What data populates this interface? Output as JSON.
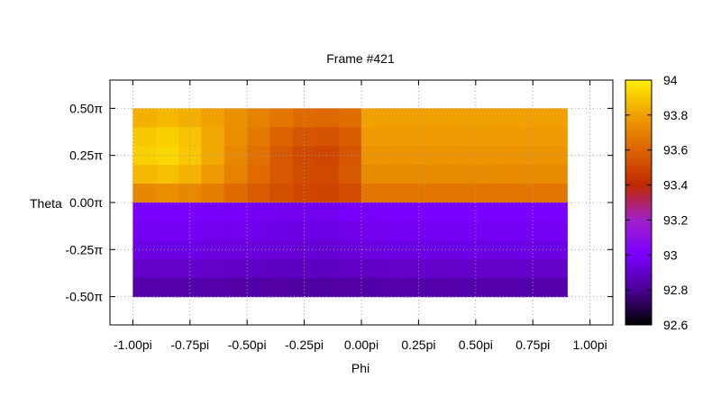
{
  "chart_data": {
    "type": "heatmap",
    "title": "Frame #421",
    "xlabel": "Phi",
    "ylabel": "Theta",
    "x_unit": "pi",
    "y_unit": "π",
    "xlim": [
      -1.1,
      1.1
    ],
    "ylim": [
      -0.65,
      0.65
    ],
    "x_ticks": [
      -1.0,
      -0.75,
      -0.5,
      -0.25,
      0.0,
      0.25,
      0.5,
      0.75,
      1.0
    ],
    "x_tick_labels": [
      "-1.00pi",
      "-0.75pi",
      "-0.50pi",
      "-0.25pi",
      "0.00pi",
      "0.25pi",
      "0.50pi",
      "0.75pi",
      "1.00pi"
    ],
    "y_ticks": [
      0.5,
      0.25,
      0.0,
      -0.25,
      -0.5
    ],
    "y_tick_labels": [
      "0.50π",
      "0.25π",
      "0.00π",
      "-0.25π",
      "-0.50π"
    ],
    "grid": true,
    "data_extent": {
      "x": [
        -1.0,
        0.9
      ],
      "y": [
        -0.5,
        0.5
      ]
    },
    "grid_phi": [
      -0.95,
      -0.85,
      -0.75,
      -0.65,
      -0.55,
      -0.45,
      -0.35,
      -0.25,
      -0.15,
      -0.05,
      0.05,
      0.15,
      0.25,
      0.35,
      0.45,
      0.55,
      0.65,
      0.75,
      0.85
    ],
    "grid_theta": [
      0.45,
      0.35,
      0.25,
      0.15,
      0.05,
      -0.05,
      -0.15,
      -0.25,
      -0.35,
      -0.45
    ],
    "values": [
      [
        93.84,
        93.86,
        93.84,
        93.8,
        93.75,
        93.7,
        93.66,
        93.62,
        93.61,
        93.63,
        93.8,
        93.8,
        93.8,
        93.8,
        93.8,
        93.8,
        93.8,
        93.8,
        93.8
      ],
      [
        93.9,
        93.92,
        93.89,
        93.82,
        93.74,
        93.67,
        93.6,
        93.55,
        93.54,
        93.58,
        93.78,
        93.78,
        93.78,
        93.78,
        93.78,
        93.78,
        93.78,
        93.78,
        93.78
      ],
      [
        93.92,
        93.94,
        93.9,
        93.82,
        93.72,
        93.64,
        93.56,
        93.51,
        93.5,
        93.55,
        93.76,
        93.76,
        93.76,
        93.76,
        93.76,
        93.76,
        93.76,
        93.76,
        93.76
      ],
      [
        93.86,
        93.88,
        93.85,
        93.78,
        93.7,
        93.62,
        93.56,
        93.52,
        93.51,
        93.56,
        93.73,
        93.73,
        93.73,
        93.73,
        93.73,
        93.73,
        93.73,
        93.73,
        93.73
      ],
      [
        93.72,
        93.74,
        93.72,
        93.68,
        93.62,
        93.57,
        93.53,
        93.5,
        93.49,
        93.52,
        93.66,
        93.66,
        93.66,
        93.66,
        93.66,
        93.66,
        93.66,
        93.66,
        93.66
      ],
      [
        93.0,
        93.0,
        93.0,
        92.99,
        92.99,
        92.98,
        92.97,
        92.97,
        92.97,
        92.99,
        92.99,
        93.0,
        93.0,
        93.0,
        93.0,
        93.0,
        93.0,
        93.0,
        93.0
      ],
      [
        92.98,
        92.98,
        92.98,
        92.97,
        92.97,
        92.96,
        92.95,
        92.95,
        92.95,
        92.96,
        92.97,
        92.98,
        92.98,
        92.98,
        92.98,
        92.98,
        92.98,
        92.98,
        92.98
      ],
      [
        92.95,
        92.95,
        92.95,
        92.94,
        92.94,
        92.93,
        92.93,
        92.92,
        92.92,
        92.93,
        92.94,
        92.95,
        92.95,
        92.95,
        92.95,
        92.95,
        92.95,
        92.95,
        92.95
      ],
      [
        92.9,
        92.9,
        92.9,
        92.9,
        92.89,
        92.89,
        92.88,
        92.88,
        92.88,
        92.89,
        92.89,
        92.9,
        92.9,
        92.9,
        92.9,
        92.9,
        92.9,
        92.9,
        92.9
      ],
      [
        92.84,
        92.84,
        92.84,
        92.84,
        92.83,
        92.83,
        92.83,
        92.82,
        92.82,
        92.83,
        92.83,
        92.84,
        92.84,
        92.84,
        92.84,
        92.84,
        92.84,
        92.84,
        92.84
      ]
    ],
    "colorbar": {
      "range": [
        92.6,
        94.0
      ],
      "ticks": [
        94.0,
        93.8,
        93.6,
        93.4,
        93.2,
        93.0,
        92.8,
        92.6
      ],
      "tick_labels": [
        "94",
        "93.8",
        "93.6",
        "93.4",
        "93.2",
        "93",
        "92.8",
        "92.6"
      ],
      "colormap": "black-purple-red-orange-yellow",
      "colormap_stops": [
        {
          "value": 92.6,
          "color": "#000000"
        },
        {
          "value": 92.8,
          "color": "#4b0095"
        },
        {
          "value": 93.0,
          "color": "#7a00ff"
        },
        {
          "value": 93.2,
          "color": "#a020c8"
        },
        {
          "value": 93.4,
          "color": "#c02800"
        },
        {
          "value": 93.6,
          "color": "#dc6400"
        },
        {
          "value": 93.8,
          "color": "#f0a000"
        },
        {
          "value": 94.0,
          "color": "#ffee00"
        }
      ]
    }
  }
}
